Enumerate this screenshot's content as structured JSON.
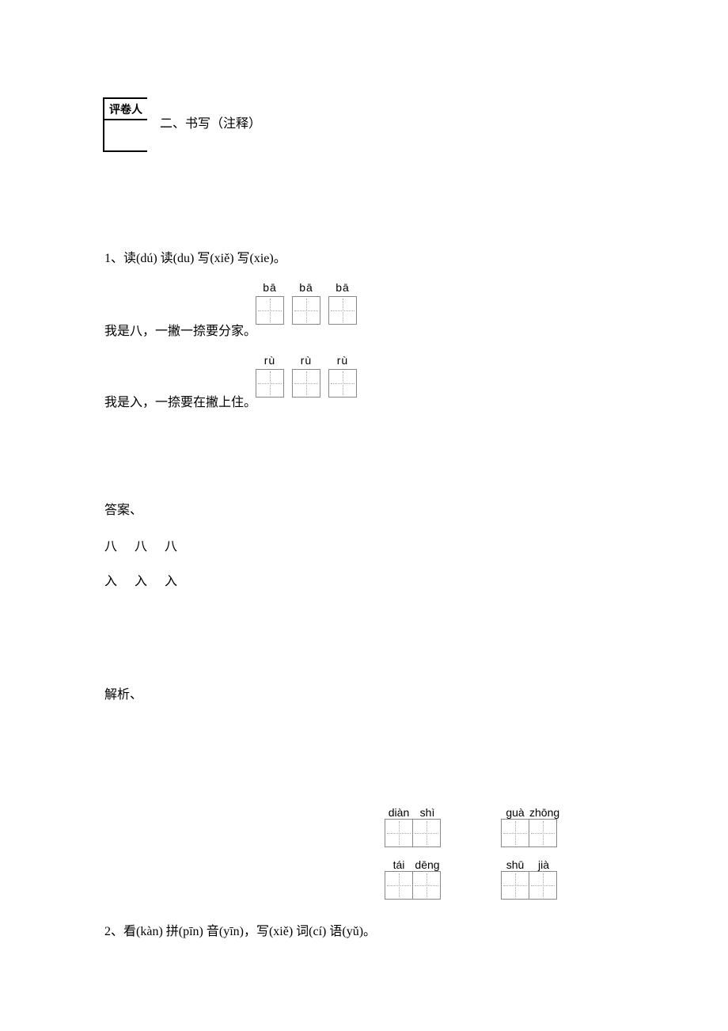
{
  "grader_label": "评卷人",
  "section_title": "二、书写（注释）",
  "q1": {
    "number": "1、",
    "prompt": "读(dú)  读(du)  写(xiě)  写(xie)。",
    "line1": "我是八，一撇一捺要分家。",
    "line2": "我是入，一捺要在撇上住。",
    "ba_pinyin": [
      "bā",
      "bā",
      "bā"
    ],
    "ru_pinyin": [
      "rù",
      "rù",
      "rù"
    ]
  },
  "answer": {
    "label": "答案、",
    "row1": [
      "八",
      "八",
      "八"
    ],
    "row2": [
      "入",
      "入",
      "入"
    ]
  },
  "jiexi_label": "解析、",
  "q2": {
    "number": "2、",
    "prompt": "看(kàn)  拼(pīn)  音(yīn)，写(xiě)  词(cí)  语(yǔ)。",
    "boxes": [
      {
        "pinyin": [
          "diàn",
          "shì"
        ]
      },
      {
        "pinyin": [
          "guà",
          "zhōng"
        ]
      },
      {
        "pinyin": [
          "tái",
          "dēng"
        ]
      },
      {
        "pinyin": [
          "shū",
          "jià"
        ]
      }
    ]
  },
  "colors": {
    "background": "#ffffff",
    "text": "#000000",
    "box_border": "#888888",
    "box_dotted": "#aaaaaa"
  }
}
